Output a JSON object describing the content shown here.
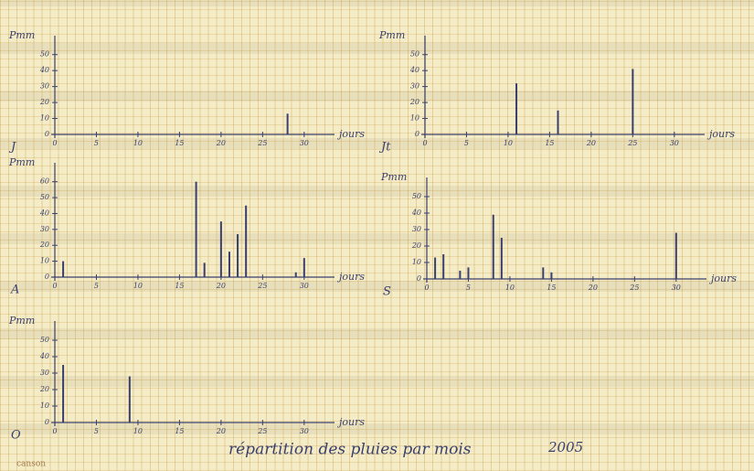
{
  "chart_data": [
    {
      "type": "bar",
      "month": "J",
      "ylabel": "Pmm",
      "xlabel": "jours",
      "color": "#3a3f6e",
      "x": [
        28
      ],
      "values": [
        13
      ],
      "xlim": [
        0,
        32
      ],
      "xticks": [
        0,
        5,
        10,
        15,
        20,
        25,
        30
      ],
      "ylim": [
        0,
        55
      ],
      "yticks": [
        0,
        10,
        20,
        30,
        40,
        50
      ]
    },
    {
      "type": "bar",
      "month": "Jt",
      "ylabel": "Pmm",
      "xlabel": "jours",
      "color": "#3a3f6e",
      "x": [
        11,
        16,
        25
      ],
      "values": [
        32,
        15,
        41
      ],
      "xlim": [
        0,
        32
      ],
      "xticks": [
        0,
        5,
        10,
        15,
        20,
        25,
        30
      ],
      "ylim": [
        0,
        55
      ],
      "yticks": [
        0,
        10,
        20,
        30,
        40,
        50
      ]
    },
    {
      "type": "bar",
      "month": "A",
      "ylabel": "Pmm",
      "xlabel": "jours",
      "color": "#3a3f6e",
      "x": [
        1,
        17,
        18,
        20,
        21,
        22,
        23,
        29,
        30
      ],
      "values": [
        10,
        60,
        9,
        35,
        16,
        27,
        45,
        3,
        12
      ],
      "xlim": [
        0,
        32
      ],
      "xticks": [
        0,
        5,
        10,
        15,
        20,
        25,
        30
      ],
      "ylim": [
        0,
        65
      ],
      "yticks": [
        0,
        10,
        20,
        30,
        40,
        50,
        60
      ]
    },
    {
      "type": "bar",
      "month": "S",
      "ylabel": "Pmm",
      "xlabel": "jours",
      "color": "#3a3f6e",
      "x": [
        1,
        2,
        4,
        5,
        8,
        9,
        14,
        15,
        30
      ],
      "values": [
        13,
        15,
        5,
        7,
        39,
        25,
        7,
        4,
        28
      ],
      "xlim": [
        0,
        32
      ],
      "xticks": [
        0,
        5,
        10,
        15,
        20,
        25,
        30
      ],
      "ylim": [
        0,
        55
      ],
      "yticks": [
        0,
        10,
        20,
        30,
        40,
        50
      ]
    },
    {
      "type": "bar",
      "month": "O",
      "ylabel": "Pmm",
      "xlabel": "jours",
      "color": "#3a3f6e",
      "x": [
        1,
        9
      ],
      "values": [
        35,
        28
      ],
      "xlim": [
        0,
        32
      ],
      "xticks": [
        0,
        5,
        10,
        15,
        20,
        25,
        30
      ],
      "ylim": [
        0,
        55
      ],
      "yticks": [
        0,
        10,
        20,
        30,
        40,
        50
      ]
    }
  ],
  "title": "répartition des pluies par mois",
  "year": "2005",
  "brand": "canson"
}
